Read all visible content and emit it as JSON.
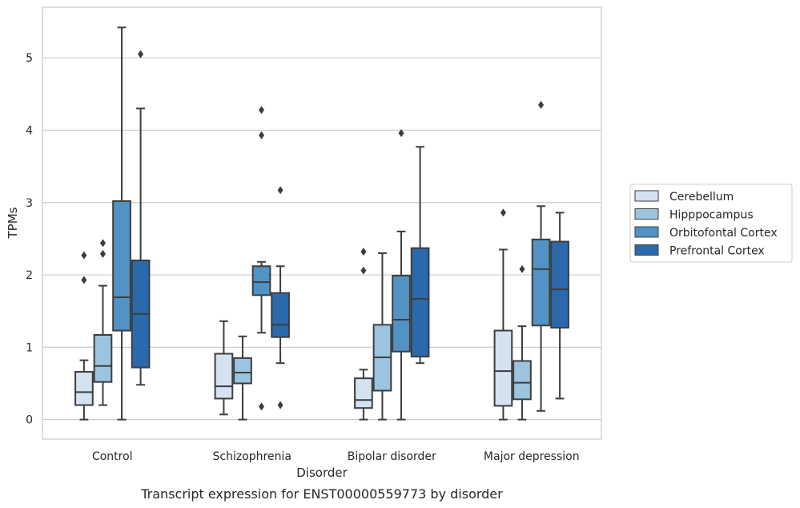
{
  "chart_data": {
    "type": "box",
    "xlabel": "Disorder",
    "ylabel": "TPMs",
    "caption": "Transcript expression for ENST00000559773 by disorder",
    "ylim": [
      -0.27,
      5.7
    ],
    "yticks": [
      0,
      1,
      2,
      3,
      4,
      5
    ],
    "grid": "horizontal",
    "legend_position": "right",
    "categories": [
      "Control",
      "Schizophrenia",
      "Bipolar disorder",
      "Major depression"
    ],
    "series": [
      {
        "name": "Cerebellum",
        "color": "#d4e2f2",
        "boxes": [
          {
            "whisker_low": 0.0,
            "q1": 0.2,
            "median": 0.38,
            "q3": 0.66,
            "whisker_high": 0.82,
            "outliers": [
              1.93,
              2.27
            ]
          },
          {
            "whisker_low": 0.07,
            "q1": 0.29,
            "median": 0.46,
            "q3": 0.91,
            "whisker_high": 1.36,
            "outliers": []
          },
          {
            "whisker_low": 0.0,
            "q1": 0.16,
            "median": 0.27,
            "q3": 0.57,
            "whisker_high": 0.69,
            "outliers": [
              2.06,
              2.32
            ]
          },
          {
            "whisker_low": 0.0,
            "q1": 0.19,
            "median": 0.67,
            "q3": 1.23,
            "whisker_high": 2.35,
            "outliers": [
              2.86
            ]
          }
        ]
      },
      {
        "name": "Hipppocampus",
        "color": "#9ac4df",
        "boxes": [
          {
            "whisker_low": 0.2,
            "q1": 0.52,
            "median": 0.74,
            "q3": 1.17,
            "whisker_high": 1.85,
            "outliers": [
              2.29,
              2.44
            ]
          },
          {
            "whisker_low": 0.0,
            "q1": 0.5,
            "median": 0.65,
            "q3": 0.85,
            "whisker_high": 1.15,
            "outliers": []
          },
          {
            "whisker_low": 0.0,
            "q1": 0.4,
            "median": 0.86,
            "q3": 1.31,
            "whisker_high": 2.3,
            "outliers": []
          },
          {
            "whisker_low": 0.0,
            "q1": 0.28,
            "median": 0.51,
            "q3": 0.81,
            "whisker_high": 1.29,
            "outliers": [
              2.08
            ]
          }
        ]
      },
      {
        "name": "Orbitofontal Cortex",
        "color": "#5193c5",
        "boxes": [
          {
            "whisker_low": 0.0,
            "q1": 1.23,
            "median": 1.69,
            "q3": 3.02,
            "whisker_high": 5.42,
            "outliers": []
          },
          {
            "whisker_low": 1.2,
            "q1": 1.72,
            "median": 1.9,
            "q3": 2.12,
            "whisker_high": 2.18,
            "outliers": [
              0.18,
              3.93,
              4.28
            ]
          },
          {
            "whisker_low": 0.0,
            "q1": 0.94,
            "median": 1.38,
            "q3": 1.99,
            "whisker_high": 2.6,
            "outliers": [
              3.96
            ]
          },
          {
            "whisker_low": 0.12,
            "q1": 1.3,
            "median": 2.08,
            "q3": 2.49,
            "whisker_high": 2.95,
            "outliers": [
              4.35
            ]
          }
        ]
      },
      {
        "name": "Prefrontal Cortex",
        "color": "#2a6aac",
        "boxes": [
          {
            "whisker_low": 0.48,
            "q1": 0.72,
            "median": 1.46,
            "q3": 2.2,
            "whisker_high": 4.3,
            "outliers": [
              5.05
            ]
          },
          {
            "whisker_low": 0.78,
            "q1": 1.14,
            "median": 1.31,
            "q3": 1.75,
            "whisker_high": 2.12,
            "outliers": [
              0.2,
              3.17
            ]
          },
          {
            "whisker_low": 0.78,
            "q1": 0.87,
            "median": 1.67,
            "q3": 2.37,
            "whisker_high": 3.77,
            "outliers": []
          },
          {
            "whisker_low": 0.29,
            "q1": 1.27,
            "median": 1.8,
            "q3": 2.46,
            "whisker_high": 2.86,
            "outliers": []
          }
        ]
      }
    ]
  }
}
